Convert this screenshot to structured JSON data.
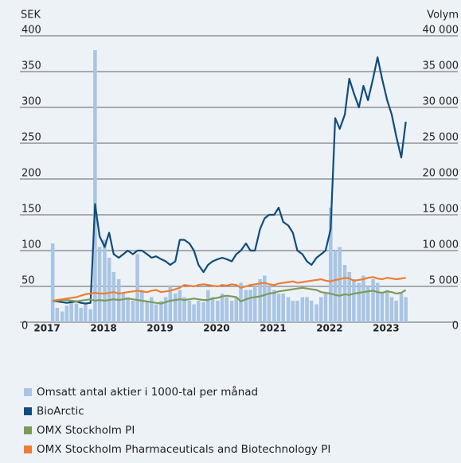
{
  "chart_data": {
    "type": "bar-line",
    "ylabel": "SEK",
    "y2label": "Volym",
    "x": [
      2017.1,
      2017.18,
      2017.27,
      2017.35,
      2017.43,
      2017.52,
      2017.6,
      2017.68,
      2017.77,
      2017.85,
      2017.93,
      2018.02,
      2018.1,
      2018.18,
      2018.27,
      2018.35,
      2018.43,
      2018.52,
      2018.6,
      2018.68,
      2018.77,
      2018.85,
      2018.93,
      2019.02,
      2019.1,
      2019.18,
      2019.27,
      2019.35,
      2019.43,
      2019.52,
      2019.6,
      2019.68,
      2019.77,
      2019.85,
      2019.93,
      2020.02,
      2020.1,
      2020.18,
      2020.27,
      2020.35,
      2020.43,
      2020.52,
      2020.6,
      2020.68,
      2020.77,
      2020.85,
      2020.93,
      2021.02,
      2021.1,
      2021.18,
      2021.27,
      2021.35,
      2021.43,
      2021.52,
      2021.6,
      2021.68,
      2021.77,
      2021.85,
      2021.93,
      2022.02,
      2022.1,
      2022.18,
      2022.27,
      2022.35,
      2022.43,
      2022.52,
      2022.6,
      2022.68,
      2022.77,
      2022.85,
      2022.93,
      2023.02,
      2023.1,
      2023.18,
      2023.27,
      2023.35
    ],
    "series": [
      {
        "name": "Omsatt antal aktier i 1000-tal per månad",
        "type": "bar",
        "axis": "y2",
        "color": "#a9c5e4",
        "values": [
          11000,
          2000,
          1500,
          2300,
          3000,
          2600,
          2000,
          2500,
          1800,
          38000,
          10500,
          11500,
          9000,
          7000,
          6000,
          4000,
          3500,
          3000,
          9500,
          4500,
          3000,
          3500,
          2500,
          3000,
          3500,
          5000,
          4000,
          4500,
          3500,
          3000,
          2500,
          3000,
          2800,
          4500,
          3500,
          3000,
          4000,
          3500,
          3000,
          3500,
          5500,
          4500,
          4500,
          5000,
          6000,
          6500,
          5000,
          4500,
          4000,
          4000,
          3500,
          3000,
          3000,
          3500,
          3500,
          3000,
          2500,
          3500,
          4000,
          16000,
          10000,
          10500,
          8000,
          7000,
          6000,
          5500,
          6500,
          5000,
          6000,
          5500,
          4000,
          4500,
          3500,
          3000,
          4000,
          3500
        ]
      },
      {
        "name": "BioArctic",
        "type": "line",
        "color": "#0f4c7d",
        "values": [
          30,
          29,
          28,
          27,
          28,
          29,
          27,
          26,
          27,
          165,
          120,
          105,
          125,
          95,
          90,
          95,
          100,
          95,
          100,
          100,
          95,
          90,
          92,
          88,
          85,
          80,
          85,
          115,
          115,
          110,
          100,
          80,
          70,
          80,
          85,
          88,
          90,
          88,
          85,
          95,
          100,
          110,
          100,
          100,
          130,
          145,
          150,
          150,
          160,
          140,
          135,
          125,
          100,
          95,
          85,
          80,
          90,
          95,
          100,
          130,
          285,
          270,
          290,
          340,
          320,
          300,
          330,
          310,
          340,
          370,
          340,
          310,
          290,
          260,
          230,
          280
        ]
      },
      {
        "name": "OMX Stockholm PI",
        "type": "line",
        "color": "#7d9a5b",
        "values": [
          30,
          30,
          31,
          31,
          30,
          29,
          30,
          31,
          32,
          30,
          31,
          30,
          31,
          32,
          31,
          32,
          33,
          32,
          31,
          30,
          29,
          28,
          27,
          26,
          28,
          30,
          31,
          32,
          31,
          32,
          33,
          32,
          31,
          31,
          33,
          34,
          36,
          37,
          36,
          35,
          29,
          32,
          34,
          35,
          36,
          38,
          40,
          41,
          43,
          44,
          45,
          46,
          47,
          48,
          47,
          46,
          45,
          42,
          41,
          40,
          38,
          37,
          39,
          38,
          40,
          41,
          42,
          43,
          44,
          42,
          41,
          43,
          42,
          40,
          41,
          45
        ]
      },
      {
        "name": "OMX Stockholm Pharmaceuticals and Biotechnology PI",
        "type": "line",
        "color": "#ee7d33",
        "values": [
          30,
          31,
          32,
          33,
          34,
          35,
          37,
          39,
          40,
          41,
          40,
          40,
          41,
          42,
          40,
          41,
          42,
          43,
          44,
          43,
          42,
          44,
          45,
          42,
          43,
          44,
          46,
          48,
          52,
          51,
          50,
          52,
          53,
          52,
          51,
          50,
          52,
          51,
          53,
          52,
          48,
          50,
          52,
          53,
          54,
          55,
          53,
          52,
          54,
          55,
          56,
          57,
          55,
          56,
          57,
          58,
          59,
          60,
          58,
          57,
          59,
          60,
          62,
          61,
          58,
          59,
          60,
          62,
          63,
          61,
          60,
          62,
          61,
          60,
          61,
          62
        ]
      }
    ],
    "xlim": [
      2016.52,
      2024.27
    ],
    "xticks": [
      2017,
      2018,
      2019,
      2020,
      2021,
      2022,
      2023
    ],
    "ylim": [
      0,
      400
    ],
    "yticks": [
      0,
      50,
      100,
      150,
      200,
      250,
      300,
      350,
      400
    ],
    "y2lim": [
      0,
      40000
    ],
    "y2ticks": [
      0,
      {
        "value": 5000,
        "label": "5 000"
      },
      {
        "value": 10000,
        "label": "10 000"
      },
      {
        "value": 15000,
        "label": "15 000"
      },
      {
        "value": 20000,
        "label": "20 000"
      },
      {
        "value": 25000,
        "label": "25 000"
      },
      {
        "value": 30000,
        "label": "30 000"
      },
      {
        "value": 35000,
        "label": "35 000"
      },
      {
        "value": 40000,
        "label": "40 000"
      }
    ],
    "grid": true,
    "legend": "bottom"
  }
}
